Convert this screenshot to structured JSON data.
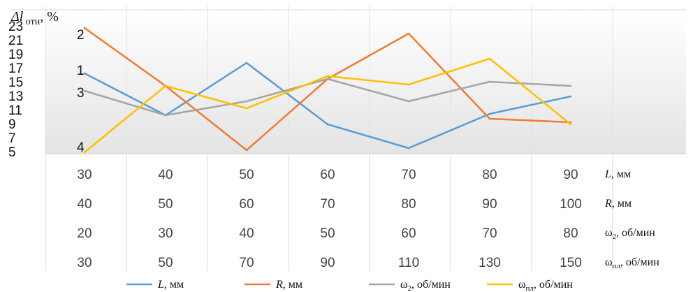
{
  "chart_data": {
    "type": "line",
    "ylabel": "Δl отн, %",
    "ylabel_main": "Δl",
    "ylabel_sub": "отн",
    "ylabel_unit": ", %",
    "ylim": [
      5,
      23
    ],
    "yticks": [
      5,
      7,
      9,
      11,
      13,
      15,
      17,
      19,
      21,
      23
    ],
    "grid": true,
    "legend_position": "bottom",
    "series": [
      {
        "name": "L, мм",
        "name_main": "L",
        "name_sub": "",
        "name_unit": ", мм",
        "label": "1",
        "color": "#5b9bd5",
        "values": [
          16.3,
          10.3,
          17.8,
          9.0,
          5.6,
          10.5,
          13.0
        ]
      },
      {
        "name": "R, мм",
        "name_main": "R",
        "name_sub": "",
        "name_unit": ", мм",
        "label": "2",
        "color": "#ed7d31",
        "values": [
          22.8,
          14.5,
          5.3,
          15.5,
          22.0,
          9.8,
          9.3
        ]
      },
      {
        "name": "ω2, об/мин",
        "name_main": "ω",
        "name_sub": "2",
        "name_unit": ", об/мин",
        "label": "3",
        "color": "#a5a5a5",
        "values": [
          13.8,
          10.3,
          12.3,
          15.5,
          12.3,
          15.1,
          14.5
        ]
      },
      {
        "name": "ωпл, об/мин",
        "name_main": "ω",
        "name_sub": "пл",
        "name_unit": ", об/мин",
        "label": "4",
        "color": "#ffc000",
        "values": [
          5.0,
          14.5,
          11.3,
          15.9,
          14.7,
          18.4,
          9.0
        ]
      }
    ],
    "table": {
      "rows": [
        {
          "label": "L, мм",
          "label_main": "L",
          "label_sub": "",
          "label_unit": ", мм",
          "values": [
            "30",
            "40",
            "50",
            "60",
            "70",
            "80",
            "90"
          ]
        },
        {
          "label": "R, мм",
          "label_main": "R",
          "label_sub": "",
          "label_unit": ", мм",
          "values": [
            "40",
            "50",
            "60",
            "70",
            "80",
            "90",
            "100"
          ]
        },
        {
          "label": "ω2, об/мин",
          "label_main": "ω",
          "label_sub": "2",
          "label_unit": ", об/мин",
          "values": [
            "20",
            "30",
            "40",
            "50",
            "60",
            "70",
            "80"
          ]
        },
        {
          "label": "ωпл, об/мин",
          "label_main": "ω",
          "label_sub": "пл",
          "label_unit": ", об/мин",
          "values": [
            "30",
            "50",
            "70",
            "90",
            "110",
            "130",
            "150"
          ]
        }
      ]
    }
  }
}
